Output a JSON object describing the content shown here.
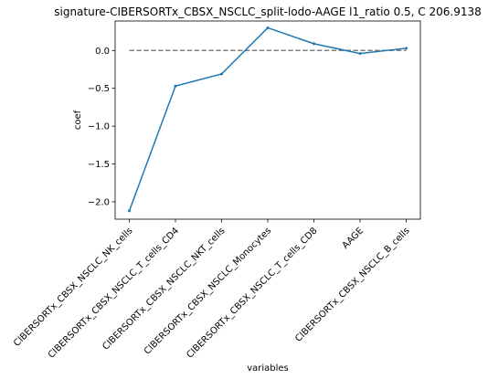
{
  "chart_data": {
    "type": "line",
    "title": "signature-CIBERSORTx_CBSX_NSCLC_split-lodo-AAGE l1_ratio 0.5, C 206.9138",
    "xlabel": "variables",
    "ylabel": "coef",
    "categories": [
      "CIBERSORTx_CBSX_NSCLC_NK_cells",
      "CIBERSORTx_CBSX_NSCLC_T_cells_CD4",
      "CIBERSORTx_CBSX_NSCLC_NKT_cells",
      "CIBERSORTx_CBSX_NSCLC_Monocytes",
      "CIBERSORTx_CBSX_NSCLC_T_cells_CD8",
      "AAGE",
      "CIBERSORTx_CBSX_NSCLC_B_cells"
    ],
    "series": [
      {
        "values": [
          -2.12,
          -0.47,
          -0.31,
          0.3,
          0.09,
          -0.04,
          0.03
        ]
      }
    ],
    "reference_line": {
      "y": 0.0,
      "style": "dashed",
      "color": "#808080"
    },
    "ylim": [
      -2.23,
      0.39
    ],
    "yticks": [
      0.0,
      -0.5,
      -1.0,
      -1.5,
      -2.0
    ],
    "ytick_labels": [
      "0.0",
      "−0.5",
      "−1.0",
      "−1.5",
      "−2.0"
    ],
    "grid": false,
    "line_color": "#1f77b4"
  }
}
